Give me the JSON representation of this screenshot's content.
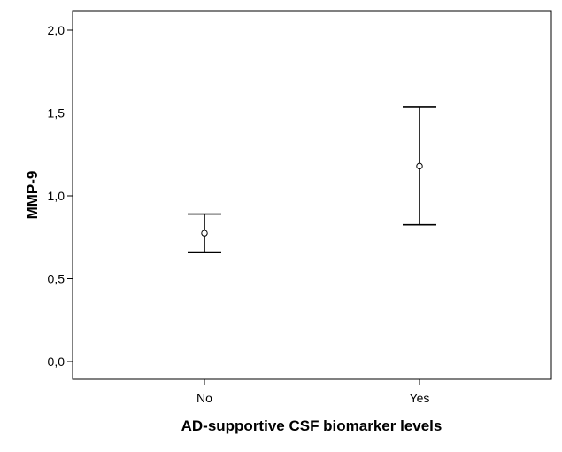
{
  "chart_data": {
    "type": "errorbar",
    "title": "",
    "xlabel": "AD-supportive CSF biomarker levels",
    "ylabel": "MMP-9",
    "categories": [
      "No",
      "Yes"
    ],
    "series": [
      {
        "mean": [
          0.775,
          1.18
        ],
        "lower": [
          0.66,
          0.825
        ],
        "upper": [
          0.89,
          1.535
        ]
      }
    ],
    "ylim": [
      -0.1,
      2.1
    ],
    "yticks": [
      0.0,
      0.5,
      1.0,
      1.5,
      2.0
    ],
    "ytick_labels": [
      "0,0",
      "0,5",
      "1,0",
      "1,5",
      "2,0"
    ],
    "grid": false,
    "legend": "none"
  }
}
